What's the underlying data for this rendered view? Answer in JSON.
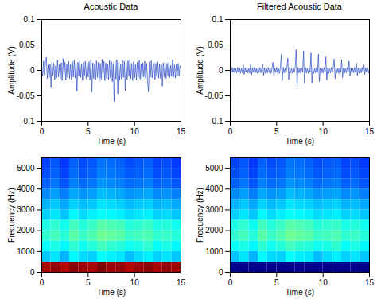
{
  "chart_data": [
    {
      "type": "line",
      "title": "Acoustic Data",
      "xlabel": "Time (s)",
      "ylabel": "Amplitude (V)",
      "color": "#2b4cc8",
      "xlim": [
        0,
        15
      ],
      "ylim": [
        -0.1,
        0.1
      ],
      "xticks": [
        0,
        5,
        10,
        15
      ],
      "yticks": [
        -0.1,
        -0.05,
        0,
        0.05,
        0.1
      ],
      "x": [
        0,
        0.1,
        0.2,
        0.3,
        0.4,
        0.5,
        0.6,
        0.7,
        0.8,
        0.9,
        1,
        1.1,
        1.2,
        1.3,
        1.4,
        1.5,
        1.6,
        1.7,
        1.8,
        1.9,
        2,
        2.1,
        2.2,
        2.3,
        2.4,
        2.5,
        2.6,
        2.7,
        2.8,
        2.9,
        3,
        3.1,
        3.2,
        3.3,
        3.4,
        3.5,
        3.6,
        3.7,
        3.8,
        3.9,
        4,
        4.1,
        4.2,
        4.3,
        4.4,
        4.5,
        4.6,
        4.7,
        4.8,
        4.9,
        5,
        5.1,
        5.2,
        5.3,
        5.4,
        5.5,
        5.6,
        5.7,
        5.8,
        5.9,
        6,
        6.1,
        6.2,
        6.3,
        6.4,
        6.5,
        6.6,
        6.7,
        6.8,
        6.9,
        7,
        7.1,
        7.2,
        7.3,
        7.4,
        7.5,
        7.6,
        7.7,
        7.8,
        7.9,
        8,
        8.1,
        8.2,
        8.3,
        8.4,
        8.5,
        8.6,
        8.7,
        8.8,
        8.9,
        9,
        9.1,
        9.2,
        9.3,
        9.4,
        9.5,
        9.6,
        9.7,
        9.8,
        9.9,
        10,
        10.1,
        10.2,
        10.3,
        10.4,
        10.5,
        10.6,
        10.7,
        10.8,
        10.9,
        11,
        11.1,
        11.2,
        11.3,
        11.4,
        11.5,
        11.6,
        11.7,
        11.8,
        11.9,
        12,
        12.1,
        12.2,
        12.3,
        12.4,
        12.5,
        12.6,
        12.7,
        12.8,
        12.9,
        13,
        13.1,
        13.2,
        13.3,
        13.4,
        13.5,
        13.6,
        13.7,
        13.8,
        13.9,
        14,
        14.1,
        14.2,
        14.3,
        14.4,
        14.5,
        14.6,
        14.7,
        14.8,
        14.9,
        15
      ],
      "values": [
        0.004,
        -0.012,
        0.018,
        -0.009,
        0.015,
        0.026,
        -0.016,
        0.011,
        -0.014,
        0.013,
        -0.034,
        0.017,
        -0.011,
        0.014,
        -0.018,
        0.009,
        -0.015,
        0.02,
        -0.013,
        0.012,
        -0.017,
        0.015,
        -0.02,
        0.023,
        -0.012,
        0.016,
        -0.019,
        0.013,
        -0.014,
        0.018,
        -0.016,
        0.012,
        -0.018,
        0.017,
        -0.013,
        0.02,
        -0.015,
        0.014,
        -0.041,
        0.016,
        -0.012,
        0.019,
        -0.014,
        0.013,
        -0.02,
        0.016,
        -0.011,
        0.018,
        -0.017,
        0.014,
        -0.013,
        0.017,
        -0.019,
        0.021,
        -0.043,
        0.015,
        -0.016,
        0.012,
        -0.018,
        0.019,
        -0.014,
        0.016,
        -0.021,
        0.014,
        -0.017,
        0.022,
        -0.013,
        0.018,
        -0.02,
        0.015,
        -0.016,
        0.013,
        -0.018,
        0.02,
        -0.015,
        0.017,
        -0.022,
        0.014,
        -0.061,
        0.018,
        -0.017,
        0.021,
        -0.046,
        0.016,
        -0.019,
        0.013,
        -0.017,
        0.02,
        -0.014,
        0.018,
        -0.04,
        0.015,
        -0.018,
        0.019,
        -0.012,
        0.022,
        -0.016,
        0.014,
        -0.02,
        0.017,
        -0.015,
        0.012,
        -0.019,
        0.016,
        -0.014,
        0.02,
        -0.017,
        0.013,
        -0.021,
        0.015,
        -0.013,
        0.018,
        -0.016,
        0.014,
        -0.02,
        -0.042,
        0.017,
        -0.013,
        0.019,
        -0.015,
        0.012,
        0.016,
        -0.018,
        0.014,
        -0.012,
        0.017,
        -0.015,
        0.013,
        -0.016,
        0.011,
        -0.031,
        0.015,
        -0.013,
        0.012,
        -0.016,
        0.014,
        -0.011,
        0.017,
        -0.014,
        0.01,
        -0.012,
        0.021,
        -0.013,
        0.011,
        -0.015,
        0.012,
        -0.01,
        0.014,
        -0.012,
        0.009,
        0.003
      ]
    },
    {
      "type": "line",
      "title": "Filtered Acoustic Data",
      "xlabel": "Time (s)",
      "ylabel": "Amplitude (V)",
      "color": "#2b4cc8",
      "xlim": [
        0,
        15
      ],
      "ylim": [
        -0.1,
        0.1
      ],
      "xticks": [
        0,
        5,
        10,
        15
      ],
      "yticks": [
        -0.1,
        -0.05,
        0,
        0.05,
        0.1
      ],
      "x": [
        0,
        0.1,
        0.2,
        0.3,
        0.4,
        0.5,
        0.6,
        0.7,
        0.8,
        0.9,
        1,
        1.1,
        1.2,
        1.3,
        1.4,
        1.5,
        1.6,
        1.7,
        1.8,
        1.9,
        2,
        2.1,
        2.2,
        2.3,
        2.4,
        2.5,
        2.6,
        2.7,
        2.8,
        2.9,
        3,
        3.1,
        3.2,
        3.3,
        3.4,
        3.5,
        3.6,
        3.7,
        3.8,
        3.9,
        4,
        4.1,
        4.2,
        4.3,
        4.4,
        4.5,
        4.6,
        4.7,
        4.8,
        4.9,
        5,
        5.1,
        5.2,
        5.3,
        5.4,
        5.5,
        5.6,
        5.7,
        5.8,
        5.9,
        6,
        6.1,
        6.2,
        6.3,
        6.4,
        6.5,
        6.6,
        6.7,
        6.8,
        6.9,
        7,
        7.1,
        7.2,
        7.3,
        7.4,
        7.5,
        7.6,
        7.7,
        7.8,
        7.9,
        8,
        8.1,
        8.2,
        8.3,
        8.4,
        8.5,
        8.6,
        8.7,
        8.8,
        8.9,
        9,
        9.1,
        9.2,
        9.3,
        9.4,
        9.5,
        9.6,
        9.7,
        9.8,
        9.9,
        10,
        10.1,
        10.2,
        10.3,
        10.4,
        10.5,
        10.6,
        10.7,
        10.8,
        10.9,
        11,
        11.1,
        11.2,
        11.3,
        11.4,
        11.5,
        11.6,
        11.7,
        11.8,
        11.9,
        12,
        12.1,
        12.2,
        12.3,
        12.4,
        12.5,
        12.6,
        12.7,
        12.8,
        12.9,
        13,
        13.1,
        13.2,
        13.3,
        13.4,
        13.5,
        13.6,
        13.7,
        13.8,
        13.9,
        14,
        14.1,
        14.2,
        14.3,
        14.4,
        14.5,
        14.6,
        14.7,
        14.8,
        14.9,
        15
      ],
      "values": [
        0.002,
        -0.005,
        0.006,
        -0.004,
        0.005,
        -0.006,
        0.004,
        -0.005,
        0.006,
        -0.004,
        0.005,
        -0.006,
        0.004,
        -0.005,
        0.011,
        -0.008,
        0.005,
        -0.004,
        0.006,
        -0.005,
        0.004,
        -0.006,
        0.013,
        -0.009,
        0.005,
        -0.004,
        0.006,
        -0.005,
        0.004,
        -0.006,
        0.005,
        -0.004,
        0.006,
        -0.005,
        0.004,
        0.012,
        -0.01,
        0.005,
        -0.006,
        0.004,
        -0.005,
        0.006,
        -0.004,
        0.005,
        -0.006,
        0.004,
        0.016,
        -0.012,
        0.005,
        -0.004,
        0.006,
        -0.005,
        0.004,
        -0.006,
        0.005,
        0.031,
        -0.02,
        0.006,
        -0.005,
        0.004,
        -0.006,
        0.005,
        0.024,
        -0.018,
        0.006,
        -0.005,
        0.004,
        -0.006,
        0.005,
        -0.004,
        0.006,
        0.041,
        -0.032,
        0.006,
        -0.005,
        0.004,
        -0.006,
        0.005,
        -0.004,
        0.038,
        -0.026,
        0.006,
        -0.005,
        0.004,
        -0.006,
        0.005,
        -0.004,
        0.034,
        -0.024,
        0.005,
        -0.006,
        0.004,
        -0.005,
        0.006,
        -0.004,
        0.032,
        -0.022,
        0.005,
        -0.006,
        0.004,
        -0.005,
        0.006,
        -0.004,
        0.027,
        -0.019,
        0.005,
        -0.006,
        0.004,
        -0.005,
        0.006,
        -0.004,
        0.005,
        0.022,
        -0.016,
        0.006,
        -0.005,
        0.004,
        -0.006,
        0.005,
        -0.004,
        0.021,
        -0.014,
        0.005,
        -0.006,
        0.004,
        -0.005,
        0.006,
        -0.004,
        0.018,
        -0.012,
        0.005,
        -0.006,
        0.004,
        -0.005,
        0.006,
        -0.004,
        0.014,
        -0.01,
        0.005,
        -0.006,
        0.004,
        -0.005,
        0.006,
        -0.004,
        0.011,
        -0.008,
        0.005,
        -0.004,
        0.006,
        -0.005,
        0.002
      ]
    },
    {
      "type": "heatmap",
      "xlabel": "Time (s)",
      "ylabel": "Frequency (Hz)",
      "xlim": [
        0,
        15
      ],
      "ylim": [
        0,
        5500
      ],
      "xticks": [
        0,
        5,
        10,
        15
      ],
      "yticks": [
        0,
        1000,
        2000,
        3000,
        4000,
        5000
      ],
      "time_bins": [
        0,
        1,
        2,
        3,
        4,
        5,
        6,
        7,
        8,
        9,
        10,
        11,
        12,
        13,
        14,
        15
      ],
      "freq_bins": [
        0,
        500,
        1000,
        1500,
        2000,
        2500,
        3000,
        3500,
        4000,
        4500,
        5000,
        5500
      ],
      "cells": [
        [
          0.96,
          0.98,
          0.95,
          0.99,
          0.97,
          0.96,
          1.0,
          0.97,
          0.98,
          0.95,
          0.97,
          0.99,
          0.96,
          0.98,
          0.97
        ],
        [
          0.32,
          0.35,
          0.3,
          0.37,
          0.34,
          0.33,
          0.38,
          0.36,
          0.35,
          0.31,
          0.34,
          0.36,
          0.33,
          0.35,
          0.32
        ],
        [
          0.38,
          0.4,
          0.37,
          0.42,
          0.39,
          0.41,
          0.44,
          0.42,
          0.41,
          0.39,
          0.4,
          0.42,
          0.38,
          0.4,
          0.37
        ],
        [
          0.42,
          0.44,
          0.41,
          0.46,
          0.43,
          0.45,
          0.48,
          0.47,
          0.46,
          0.43,
          0.44,
          0.45,
          0.42,
          0.43,
          0.41
        ],
        [
          0.4,
          0.42,
          0.39,
          0.44,
          0.41,
          0.43,
          0.46,
          0.45,
          0.44,
          0.41,
          0.42,
          0.43,
          0.4,
          0.41,
          0.39
        ],
        [
          0.33,
          0.35,
          0.32,
          0.37,
          0.34,
          0.36,
          0.38,
          0.37,
          0.36,
          0.34,
          0.35,
          0.36,
          0.33,
          0.34,
          0.32
        ],
        [
          0.3,
          0.32,
          0.29,
          0.33,
          0.31,
          0.32,
          0.35,
          0.34,
          0.33,
          0.31,
          0.32,
          0.33,
          0.3,
          0.31,
          0.29
        ],
        [
          0.26,
          0.28,
          0.25,
          0.29,
          0.27,
          0.28,
          0.31,
          0.3,
          0.29,
          0.27,
          0.28,
          0.29,
          0.26,
          0.27,
          0.25
        ],
        [
          0.22,
          0.24,
          0.21,
          0.25,
          0.23,
          0.24,
          0.27,
          0.26,
          0.25,
          0.23,
          0.24,
          0.25,
          0.22,
          0.23,
          0.21
        ],
        [
          0.2,
          0.22,
          0.19,
          0.23,
          0.21,
          0.22,
          0.25,
          0.24,
          0.23,
          0.21,
          0.22,
          0.23,
          0.2,
          0.21,
          0.19
        ],
        [
          0.19,
          0.21,
          0.18,
          0.22,
          0.2,
          0.21,
          0.24,
          0.23,
          0.22,
          0.2,
          0.21,
          0.22,
          0.19,
          0.2,
          0.18
        ]
      ]
    },
    {
      "type": "heatmap",
      "xlabel": "Time (s)",
      "ylabel": "Frequency (Hz)",
      "xlim": [
        0,
        15
      ],
      "ylim": [
        0,
        5500
      ],
      "xticks": [
        0,
        5,
        10,
        15
      ],
      "yticks": [
        0,
        1000,
        2000,
        3000,
        4000,
        5000
      ],
      "time_bins": [
        0,
        1,
        2,
        3,
        4,
        5,
        6,
        7,
        8,
        9,
        10,
        11,
        12,
        13,
        14,
        15
      ],
      "freq_bins": [
        0,
        500,
        1000,
        1500,
        2000,
        2500,
        3000,
        3500,
        4000,
        4500,
        5000,
        5500
      ],
      "cells": [
        [
          0,
          0,
          0,
          0,
          0,
          0,
          0,
          0,
          0,
          0,
          0,
          0,
          0,
          0,
          0
        ],
        [
          0.32,
          0.35,
          0.3,
          0.37,
          0.34,
          0.33,
          0.38,
          0.36,
          0.35,
          0.31,
          0.34,
          0.36,
          0.33,
          0.35,
          0.32
        ],
        [
          0.38,
          0.4,
          0.37,
          0.42,
          0.39,
          0.41,
          0.44,
          0.42,
          0.41,
          0.39,
          0.4,
          0.42,
          0.38,
          0.4,
          0.37
        ],
        [
          0.42,
          0.44,
          0.41,
          0.46,
          0.43,
          0.45,
          0.48,
          0.47,
          0.46,
          0.43,
          0.44,
          0.45,
          0.42,
          0.43,
          0.41
        ],
        [
          0.4,
          0.42,
          0.39,
          0.44,
          0.41,
          0.43,
          0.46,
          0.45,
          0.44,
          0.41,
          0.42,
          0.43,
          0.4,
          0.41,
          0.39
        ],
        [
          0.33,
          0.35,
          0.32,
          0.37,
          0.34,
          0.36,
          0.38,
          0.37,
          0.36,
          0.34,
          0.35,
          0.36,
          0.33,
          0.34,
          0.32
        ],
        [
          0.3,
          0.32,
          0.29,
          0.33,
          0.31,
          0.32,
          0.35,
          0.34,
          0.33,
          0.31,
          0.32,
          0.33,
          0.3,
          0.31,
          0.29
        ],
        [
          0.26,
          0.28,
          0.25,
          0.29,
          0.27,
          0.28,
          0.31,
          0.3,
          0.29,
          0.27,
          0.28,
          0.29,
          0.26,
          0.27,
          0.25
        ],
        [
          0.22,
          0.24,
          0.21,
          0.25,
          0.23,
          0.24,
          0.27,
          0.26,
          0.25,
          0.23,
          0.24,
          0.25,
          0.22,
          0.23,
          0.21
        ],
        [
          0.2,
          0.22,
          0.19,
          0.23,
          0.21,
          0.22,
          0.25,
          0.24,
          0.23,
          0.21,
          0.22,
          0.23,
          0.2,
          0.21,
          0.19
        ],
        [
          0.19,
          0.21,
          0.18,
          0.22,
          0.2,
          0.21,
          0.24,
          0.23,
          0.22,
          0.2,
          0.21,
          0.22,
          0.19,
          0.2,
          0.18
        ]
      ]
    }
  ]
}
